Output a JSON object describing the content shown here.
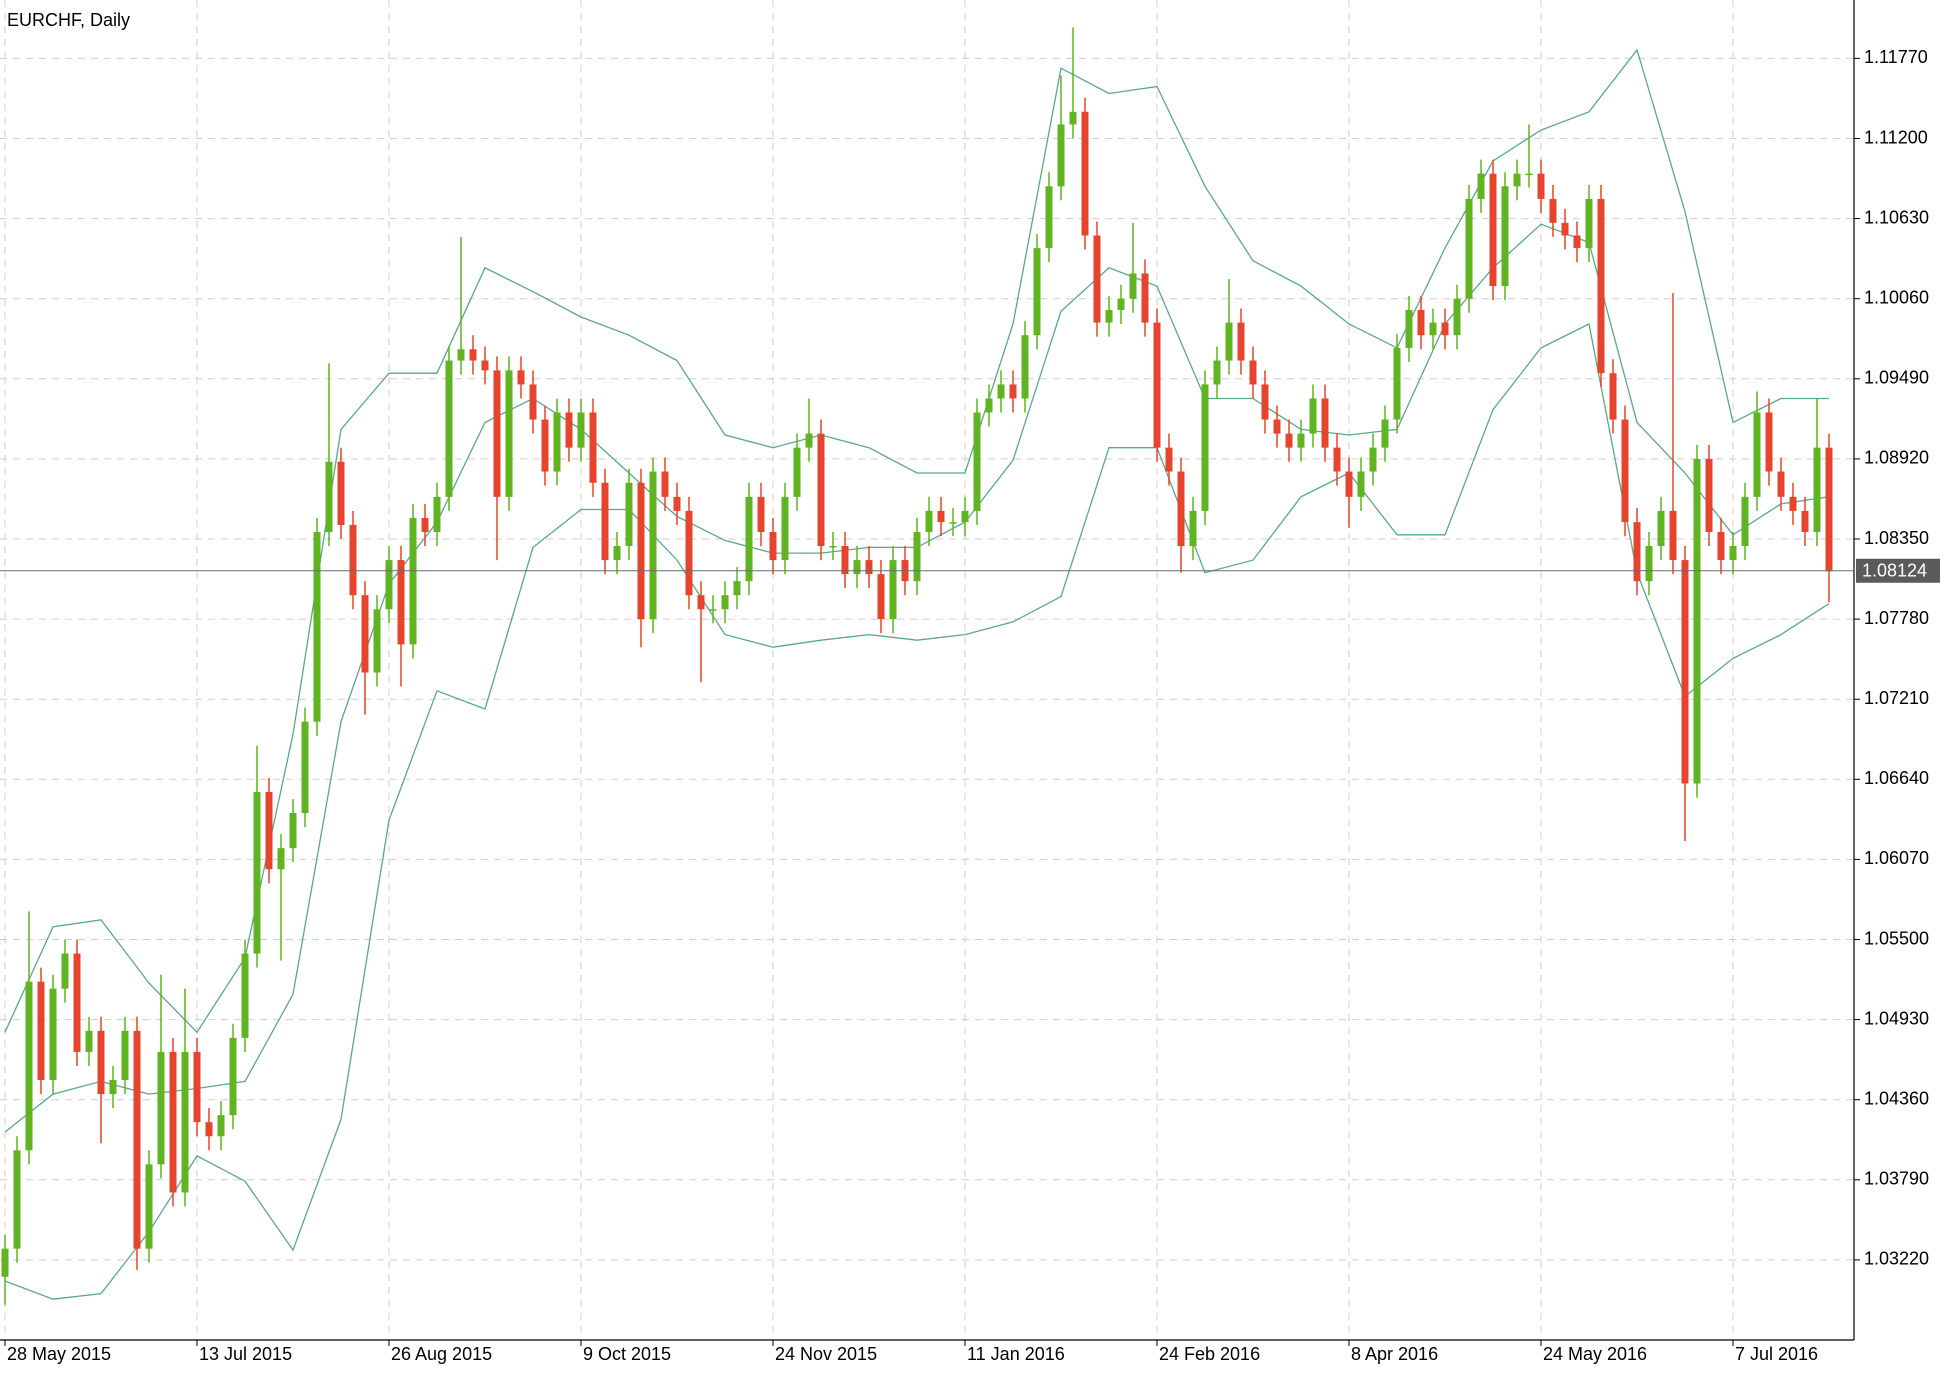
{
  "chart_data": {
    "type": "candlestick",
    "title": "EURCHF, Daily",
    "categories": [
      "28 May 2015",
      null,
      null,
      null,
      null,
      null,
      null,
      null,
      null,
      null,
      null,
      null,
      null,
      null,
      null,
      null,
      "13 Jul 2015",
      null,
      null,
      null,
      null,
      null,
      null,
      null,
      null,
      null,
      null,
      null,
      null,
      null,
      null,
      null,
      "26 Aug 2015",
      null,
      null,
      null,
      null,
      null,
      null,
      null,
      null,
      null,
      null,
      null,
      null,
      null,
      null,
      null,
      "9 Oct 2015",
      null,
      null,
      null,
      null,
      null,
      null,
      null,
      null,
      null,
      null,
      null,
      null,
      null,
      null,
      null,
      "24 Nov 2015",
      null,
      null,
      null,
      null,
      null,
      null,
      null,
      null,
      null,
      null,
      null,
      null,
      null,
      null,
      null,
      "11 Jan 2016",
      null,
      null,
      null,
      null,
      null,
      null,
      null,
      null,
      null,
      null,
      null,
      null,
      null,
      null,
      null,
      "24 Feb 2016",
      null,
      null,
      null,
      null,
      null,
      null,
      null,
      null,
      null,
      null,
      null,
      null,
      null,
      null,
      null,
      "8 Apr 2016",
      null,
      null,
      null,
      null,
      null,
      null,
      null,
      null,
      null,
      null,
      null,
      null,
      null,
      null,
      null,
      "24 May 2016",
      null,
      null,
      null,
      null,
      null,
      null,
      null,
      null,
      null,
      null,
      null,
      null,
      null,
      null,
      null,
      "7 Jul 2016",
      null,
      null,
      null,
      null,
      null,
      null,
      null,
      null
    ],
    "open": [
      1.031,
      1.033,
      1.04,
      1.052,
      1.045,
      1.0515,
      1.054,
      1.047,
      1.0485,
      1.044,
      1.045,
      1.0485,
      1.033,
      1.039,
      1.047,
      1.037,
      1.047,
      1.042,
      1.041,
      1.0425,
      1.048,
      1.054,
      1.0655,
      1.06,
      1.0615,
      1.064,
      1.0705,
      1.084,
      1.089,
      1.0845,
      1.0795,
      1.074,
      1.0785,
      1.082,
      1.076,
      1.085,
      1.084,
      1.0865,
      1.0962,
      1.097,
      1.0962,
      1.0955,
      1.0865,
      1.0955,
      1.0945,
      1.092,
      1.0883,
      1.0925,
      1.09,
      1.0925,
      1.0875,
      1.082,
      1.083,
      1.0875,
      1.0778,
      1.0883,
      1.0865,
      1.0855,
      1.0795,
      1.0785,
      1.0785,
      1.0795,
      1.0805,
      1.0865,
      1.084,
      1.082,
      1.0865,
      1.09,
      1.091,
      1.083,
      1.083,
      1.081,
      1.082,
      1.081,
      1.0778,
      1.082,
      1.0805,
      1.084,
      1.0855,
      1.0847,
      1.0847,
      1.0855,
      1.0925,
      1.0935,
      1.0945,
      1.0935,
      1.098,
      1.1042,
      1.1086,
      1.113,
      1.1139,
      1.1051,
      1.0989,
      1.0998,
      1.1006,
      1.1024,
      1.0989,
      1.09,
      1.0883,
      1.083,
      1.0855,
      1.0945,
      1.0962,
      1.0989,
      1.0962,
      1.0945,
      1.092,
      1.091,
      1.09,
      1.091,
      1.0935,
      1.09,
      1.0883,
      1.0865,
      1.0883,
      1.09,
      1.092,
      1.0971,
      1.0998,
      1.098,
      1.0989,
      1.098,
      1.1006,
      1.1077,
      1.1095,
      1.1015,
      1.1086,
      1.1095,
      1.1095,
      1.1077,
      1.106,
      1.1051,
      1.1042,
      1.1077,
      1.0953,
      1.092,
      1.0847,
      1.0805,
      1.083,
      1.0855,
      1.082,
      1.0661,
      1.0892,
      1.084,
      1.082,
      1.083,
      1.0865,
      1.0925,
      1.0883,
      1.0865,
      1.0855,
      1.084,
      1.09
    ],
    "high": [
      1.034,
      1.041,
      1.057,
      1.053,
      1.0525,
      1.055,
      1.055,
      1.0495,
      1.0495,
      1.046,
      1.0495,
      1.0495,
      1.04,
      1.0525,
      1.048,
      1.0515,
      1.048,
      1.043,
      1.0435,
      1.049,
      1.055,
      1.0688,
      1.0665,
      1.0625,
      1.065,
      1.0715,
      1.085,
      1.096,
      1.09,
      1.0855,
      1.0805,
      1.0795,
      1.083,
      1.083,
      1.086,
      1.086,
      1.0875,
      1.0972,
      1.105,
      1.098,
      1.0972,
      1.0965,
      1.0965,
      1.0965,
      1.0955,
      1.093,
      1.0935,
      1.0935,
      1.0935,
      1.0935,
      1.0885,
      1.084,
      1.0885,
      1.0885,
      1.0893,
      1.0893,
      1.0875,
      1.0865,
      1.0805,
      1.0795,
      1.0805,
      1.0815,
      1.0875,
      1.0875,
      1.085,
      1.0875,
      1.091,
      1.0935,
      1.092,
      1.084,
      1.084,
      1.083,
      1.083,
      1.082,
      1.083,
      1.083,
      1.085,
      1.0865,
      1.0865,
      1.0857,
      1.0865,
      1.0935,
      1.0945,
      1.0955,
      1.0955,
      1.099,
      1.1052,
      1.1096,
      1.1165,
      1.1199,
      1.1149,
      1.1061,
      1.1008,
      1.1016,
      1.106,
      1.1034,
      1.0999,
      1.091,
      1.0893,
      1.0865,
      1.0955,
      1.0972,
      1.102,
      1.0999,
      1.0972,
      1.0955,
      1.093,
      1.092,
      1.092,
      1.0945,
      1.0945,
      1.091,
      1.0893,
      1.0893,
      1.091,
      1.093,
      1.0981,
      1.1008,
      1.1008,
      1.0999,
      1.0999,
      1.1016,
      1.1087,
      1.1105,
      1.1105,
      1.1096,
      1.1105,
      1.113,
      1.1105,
      1.1087,
      1.107,
      1.1061,
      1.1087,
      1.1087,
      1.0963,
      1.093,
      1.0857,
      1.084,
      1.0865,
      1.101,
      1.083,
      1.0902,
      1.0902,
      1.085,
      1.084,
      1.0875,
      1.094,
      1.0935,
      1.0893,
      1.0875,
      1.0865,
      1.0935,
      1.091
    ],
    "low": [
      1.029,
      1.032,
      1.039,
      1.044,
      1.044,
      1.0505,
      1.046,
      1.046,
      1.0405,
      1.043,
      1.044,
      1.0315,
      1.032,
      1.038,
      1.036,
      1.036,
      1.041,
      1.04,
      1.04,
      1.0415,
      1.047,
      1.053,
      1.059,
      1.0535,
      1.0605,
      1.063,
      1.0695,
      1.083,
      1.0835,
      1.0785,
      1.071,
      1.073,
      1.0775,
      1.073,
      1.075,
      1.083,
      1.083,
      1.0855,
      1.0952,
      1.0952,
      1.0945,
      1.082,
      1.0855,
      1.0935,
      1.091,
      1.0873,
      1.0873,
      1.089,
      1.089,
      1.0865,
      1.081,
      1.081,
      1.082,
      1.0758,
      1.0768,
      1.0855,
      1.0845,
      1.0785,
      1.0733,
      1.0775,
      1.0775,
      1.0785,
      1.0795,
      1.083,
      1.081,
      1.081,
      1.0855,
      1.089,
      1.082,
      1.082,
      1.08,
      1.08,
      1.08,
      1.0768,
      1.0768,
      1.0795,
      1.0795,
      1.083,
      1.0837,
      1.0837,
      1.0837,
      1.0845,
      1.0915,
      1.0925,
      1.0925,
      1.0925,
      1.097,
      1.1032,
      1.1076,
      1.112,
      1.1041,
      1.0979,
      1.0979,
      1.0988,
      1.0996,
      1.0979,
      1.089,
      1.0873,
      1.0811,
      1.082,
      1.0845,
      1.0935,
      1.0952,
      1.0952,
      1.0935,
      1.091,
      1.09,
      1.089,
      1.089,
      1.09,
      1.089,
      1.0873,
      1.0843,
      1.0855,
      1.0873,
      1.089,
      1.091,
      1.0961,
      1.097,
      1.097,
      1.097,
      1.097,
      1.0996,
      1.1067,
      1.1005,
      1.1005,
      1.1076,
      1.1085,
      1.1067,
      1.105,
      1.1041,
      1.1032,
      1.1032,
      1.0943,
      1.091,
      1.0837,
      1.0795,
      1.0795,
      1.082,
      1.081,
      1.062,
      1.0651,
      1.083,
      1.081,
      1.081,
      1.082,
      1.0855,
      1.0873,
      1.0855,
      1.0845,
      1.083,
      1.083,
      1.079
    ],
    "close": [
      1.033,
      1.04,
      1.052,
      1.045,
      1.0515,
      1.054,
      1.047,
      1.0485,
      1.044,
      1.045,
      1.0485,
      1.033,
      1.039,
      1.047,
      1.037,
      1.047,
      1.042,
      1.041,
      1.0425,
      1.048,
      1.054,
      1.0655,
      1.06,
      1.0615,
      1.064,
      1.0705,
      1.084,
      1.089,
      1.0845,
      1.0795,
      1.074,
      1.0785,
      1.082,
      1.076,
      1.085,
      1.084,
      1.0865,
      1.0962,
      1.097,
      1.0962,
      1.0955,
      1.0865,
      1.0955,
      1.0945,
      1.092,
      1.0883,
      1.0925,
      1.09,
      1.0925,
      1.0875,
      1.082,
      1.083,
      1.0875,
      1.0778,
      1.0883,
      1.0865,
      1.0855,
      1.0795,
      1.0785,
      1.0785,
      1.0795,
      1.0805,
      1.0865,
      1.084,
      1.082,
      1.0865,
      1.09,
      1.091,
      1.083,
      1.083,
      1.081,
      1.082,
      1.081,
      1.0778,
      1.082,
      1.0805,
      1.084,
      1.0855,
      1.0847,
      1.0847,
      1.0855,
      1.0925,
      1.0935,
      1.0945,
      1.0935,
      1.098,
      1.1042,
      1.1086,
      1.113,
      1.1139,
      1.1051,
      1.0989,
      1.0998,
      1.1006,
      1.1024,
      1.0989,
      1.09,
      1.0883,
      1.083,
      1.0855,
      1.0945,
      1.0962,
      1.0989,
      1.0962,
      1.0945,
      1.092,
      1.091,
      1.09,
      1.091,
      1.0935,
      1.09,
      1.0883,
      1.0865,
      1.0883,
      1.09,
      1.092,
      1.0971,
      1.0998,
      1.098,
      1.0989,
      1.098,
      1.1006,
      1.1077,
      1.1095,
      1.1015,
      1.1086,
      1.1095,
      1.1095,
      1.1077,
      1.106,
      1.1051,
      1.1042,
      1.1077,
      1.0953,
      1.092,
      1.0847,
      1.0805,
      1.083,
      1.0855,
      1.082,
      1.0661,
      1.0892,
      1.084,
      1.082,
      1.083,
      1.0865,
      1.0925,
      1.0883,
      1.0865,
      1.0855,
      1.084,
      1.09,
      1.0812
    ],
    "up_color": "#5fb420",
    "down_color": "#e8432d",
    "series": [
      {
        "color": "#5aa88a",
        "x": [
          0,
          4,
          8,
          12,
          16,
          20,
          24,
          28,
          32,
          36,
          40,
          44,
          48,
          52,
          56,
          60,
          64,
          68,
          72,
          76,
          80,
          84,
          88,
          92,
          96,
          100,
          104,
          108,
          112,
          116,
          120,
          124,
          128,
          132,
          136,
          140,
          144,
          148,
          152
        ],
        "values": [
          1.0484,
          1.0559,
          1.0564,
          1.0519,
          1.0484,
          1.0537,
          1.0696,
          1.0913,
          1.0953,
          1.0953,
          1.1028,
          1.1011,
          1.0993,
          1.098,
          1.0962,
          1.0909,
          1.09,
          1.0909,
          1.09,
          1.0882,
          1.0882,
          1.0988,
          1.117,
          1.1152,
          1.1157,
          1.1086,
          1.1033,
          1.1015,
          1.0988,
          1.0971,
          1.1042,
          1.1104,
          1.1126,
          1.1139,
          1.1183,
          1.1068,
          1.0918,
          1.0935,
          1.0935
        ]
      },
      {
        "color": "#5aa88a",
        "x": [
          0,
          4,
          8,
          12,
          16,
          20,
          24,
          28,
          32,
          36,
          40,
          44,
          48,
          52,
          56,
          60,
          64,
          68,
          72,
          76,
          80,
          84,
          88,
          92,
          96,
          100,
          104,
          108,
          112,
          116,
          120,
          124,
          128,
          132,
          136,
          140,
          144,
          148,
          152
        ],
        "values": [
          1.0413,
          1.044,
          1.0449,
          1.044,
          1.0444,
          1.0449,
          1.0511,
          1.0705,
          1.0803,
          1.0847,
          1.0918,
          1.0935,
          1.0913,
          1.0882,
          1.0851,
          1.0834,
          1.0825,
          1.0825,
          1.0829,
          1.0829,
          1.0847,
          1.0891,
          1.0997,
          1.1028,
          1.1015,
          1.0935,
          1.0935,
          1.0913,
          1.0909,
          1.0913,
          1.0988,
          1.1028,
          1.1059,
          1.1046,
          1.0918,
          1.0882,
          1.0838,
          1.086,
          1.0865
        ]
      },
      {
        "color": "#5aa88a",
        "x": [
          0,
          4,
          8,
          12,
          16,
          20,
          24,
          28,
          32,
          36,
          40,
          44,
          48,
          52,
          56,
          60,
          64,
          68,
          72,
          76,
          80,
          84,
          88,
          92,
          96,
          100,
          104,
          108,
          112,
          116,
          120,
          124,
          128,
          132,
          136,
          140,
          144,
          148,
          152
        ],
        "values": [
          1.0307,
          1.0294,
          1.0298,
          1.0342,
          1.0396,
          1.0378,
          1.0329,
          1.0422,
          1.0635,
          1.0727,
          1.0714,
          1.0829,
          1.0856,
          1.0856,
          1.082,
          1.0767,
          1.0758,
          1.0763,
          1.0767,
          1.0763,
          1.0767,
          1.0776,
          1.0794,
          1.09,
          1.09,
          1.0811,
          1.082,
          1.0865,
          1.0882,
          1.0838,
          1.0838,
          1.0927,
          1.0971,
          1.0988,
          1.0811,
          1.0723,
          1.075,
          1.0767,
          1.0789
        ]
      }
    ],
    "last_price": {
      "value": 1.08124,
      "label": "1.08124"
    },
    "ylim": [
      1.0265,
      1.1215
    ],
    "yticks": [
      {
        "value": 1.0322,
        "label": "1.03220"
      },
      {
        "value": 1.0379,
        "label": "1.03790"
      },
      {
        "value": 1.0436,
        "label": "1.04360"
      },
      {
        "value": 1.0493,
        "label": "1.04930"
      },
      {
        "value": 1.055,
        "label": "1.05500"
      },
      {
        "value": 1.0607,
        "label": "1.06070"
      },
      {
        "value": 1.0664,
        "label": "1.06640"
      },
      {
        "value": 1.0721,
        "label": "1.07210"
      },
      {
        "value": 1.0778,
        "label": "1.07780"
      },
      {
        "value": 1.0835,
        "label": "1.08350"
      },
      {
        "value": 1.0892,
        "label": "1.08920"
      },
      {
        "value": 1.0949,
        "label": "1.09490"
      },
      {
        "value": 1.1006,
        "label": "1.10060"
      },
      {
        "value": 1.1063,
        "label": "1.10630"
      },
      {
        "value": 1.112,
        "label": "1.11200"
      },
      {
        "value": 1.1177,
        "label": "1.11770"
      }
    ],
    "grid": true
  }
}
